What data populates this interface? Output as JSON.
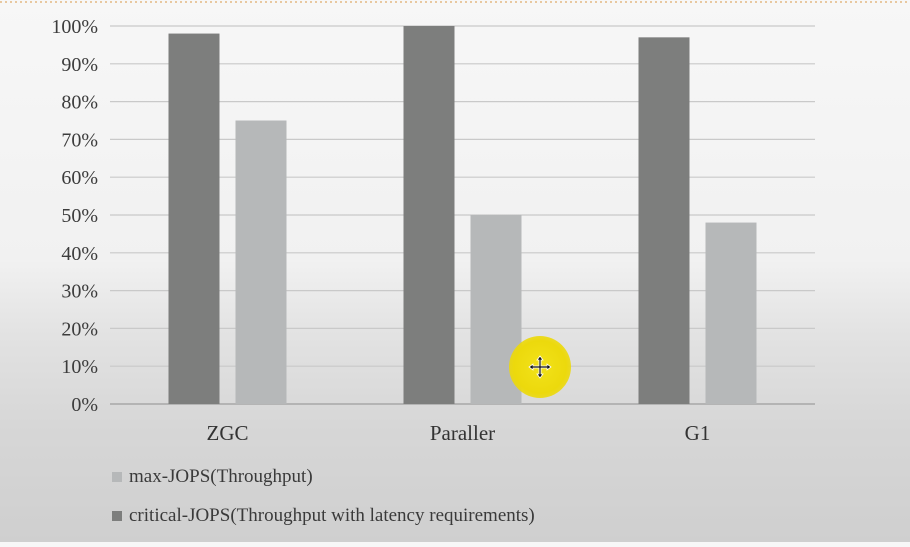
{
  "chart_data": {
    "type": "bar",
    "categories": [
      "ZGC",
      "Paraller",
      "G1"
    ],
    "series": [
      {
        "name": "critical-JOPS(Throughput with latency requirements)",
        "color": "#7d7e7d",
        "values": [
          98,
          100,
          97
        ]
      },
      {
        "name": "max-JOPS(Throughput)",
        "color": "#b6b8b9",
        "values": [
          75,
          50,
          48
        ]
      }
    ],
    "y_ticks": [
      "0%",
      "10%",
      "20%",
      "30%",
      "40%",
      "50%",
      "60%",
      "70%",
      "80%",
      "90%",
      "100%"
    ],
    "ylim": [
      0,
      100
    ],
    "y_unit": "%",
    "grid": true,
    "legend_placement": "bottom-left",
    "legend": [
      {
        "label": "max-JOPS(Throughput)",
        "color": "#b6b8b9"
      },
      {
        "label": "critical-JOPS(Throughput with latency requirements)",
        "color": "#7d7e7d"
      }
    ],
    "title": "",
    "xlabel": "",
    "ylabel": ""
  },
  "cursor": {
    "icon": "move-cursor-icon",
    "highlight_color": "#ecd90c"
  }
}
